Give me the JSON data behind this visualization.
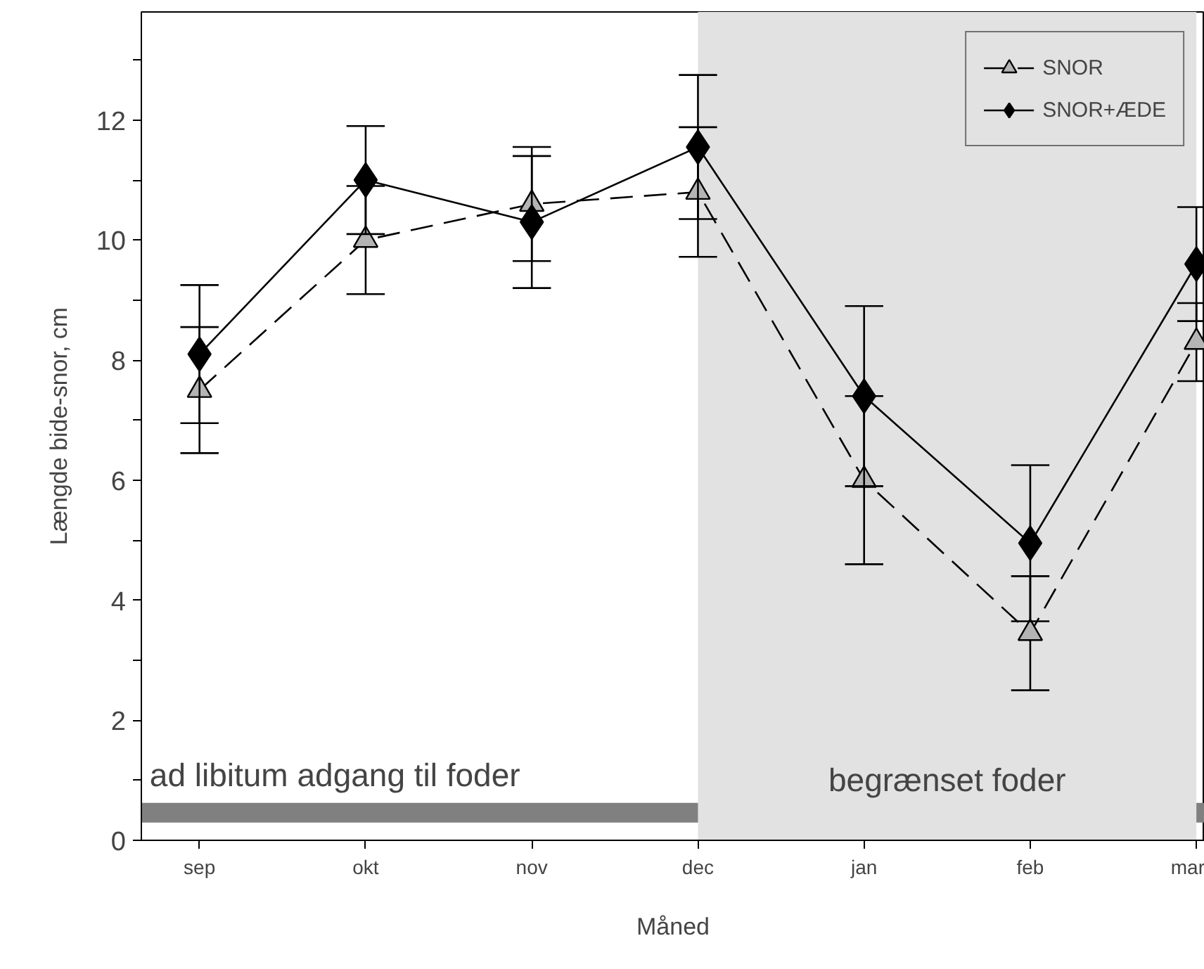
{
  "chart_data": {
    "type": "line",
    "xlabel": "Måned",
    "ylabel": "Længde bide-snor, cm",
    "categories": [
      "sep",
      "okt",
      "nov",
      "dec",
      "jan",
      "feb",
      "mar"
    ],
    "series": [
      {
        "name": "SNOR",
        "color": "#b4b4b4",
        "marker": "triangle",
        "line_style": "dashed",
        "values": [
          7.5,
          10.0,
          10.6,
          10.8,
          6.0,
          3.45,
          8.3
        ],
        "errors": [
          1.05,
          0.9,
          0.95,
          1.08,
          1.4,
          0.95,
          0.65
        ]
      },
      {
        "name": "SNOR+ÆDE",
        "color": "#000000",
        "marker": "diamond",
        "line_style": "solid",
        "values": [
          8.1,
          11.0,
          10.3,
          11.55,
          7.4,
          4.95,
          9.6
        ],
        "errors": [
          1.15,
          0.9,
          1.1,
          1.2,
          1.5,
          1.3,
          0.95
        ]
      }
    ],
    "ylim": [
      0,
      13.8
    ],
    "yticks": [
      0,
      {
        "value": 1,
        "label": null
      },
      2,
      {
        "value": 3,
        "label": null
      },
      4,
      {
        "value": 5,
        "label": null
      },
      6,
      {
        "value": 7,
        "label": null
      },
      8,
      {
        "value": 9,
        "label": null
      },
      10,
      {
        "value": 11,
        "label": null
      },
      12,
      {
        "value": 13,
        "label": null
      }
    ],
    "bands": [
      {
        "axis": "x",
        "from": "dec",
        "to": "mar",
        "label": "begrænset foder",
        "color": "#e2e2e2"
      }
    ],
    "ref_lines": [
      {
        "axis": "y",
        "value": 0.46,
        "label": "ad libitum adgang til foder",
        "color": "#808080"
      }
    ],
    "grid": false,
    "legend": "top right"
  }
}
